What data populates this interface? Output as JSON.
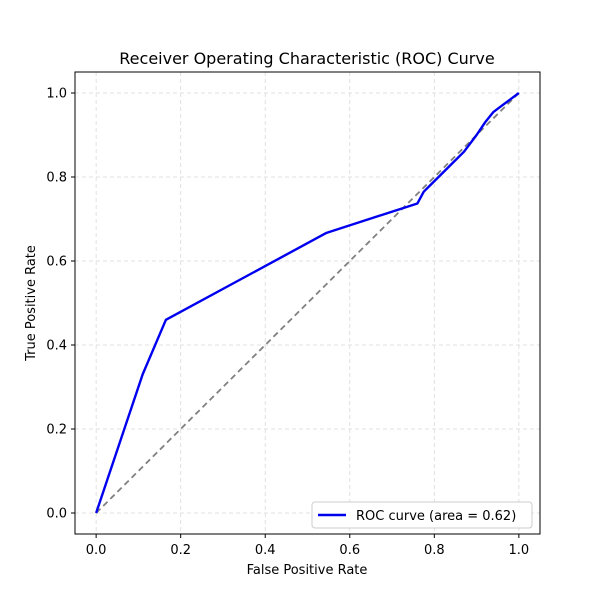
{
  "chart_data": {
    "type": "line",
    "title": "Receiver Operating Characteristic (ROC) Curve",
    "xlabel": "False Positive Rate",
    "ylabel": "True Positive Rate",
    "xlim": [
      -0.05,
      1.05
    ],
    "ylim": [
      -0.05,
      1.05
    ],
    "xticks": [
      0.0,
      0.2,
      0.4,
      0.6,
      0.8,
      1.0
    ],
    "yticks": [
      0.0,
      0.2,
      0.4,
      0.6,
      0.8,
      1.0
    ],
    "xtick_labels": [
      "0.0",
      "0.2",
      "0.4",
      "0.6",
      "0.8",
      "1.0"
    ],
    "ytick_labels": [
      "0.0",
      "0.2",
      "0.4",
      "0.6",
      "0.8",
      "1.0"
    ],
    "grid": true,
    "legend_position": "lower right",
    "series": [
      {
        "name": "ROC curve (area = 0.62)",
        "color": "#0000ee",
        "style": "solid",
        "x": [
          0.0,
          0.11,
          0.165,
          0.545,
          0.76,
          0.775,
          0.79,
          0.81,
          0.84,
          0.87,
          0.9,
          0.92,
          0.94,
          0.96,
          0.98,
          1.0
        ],
        "y": [
          0.0,
          0.33,
          0.46,
          0.667,
          0.737,
          0.765,
          0.78,
          0.8,
          0.83,
          0.86,
          0.9,
          0.93,
          0.955,
          0.97,
          0.985,
          1.0
        ]
      },
      {
        "color": "#808080",
        "style": "dashed",
        "x": [
          0.0,
          1.0
        ],
        "y": [
          0.0,
          1.0
        ]
      }
    ]
  }
}
